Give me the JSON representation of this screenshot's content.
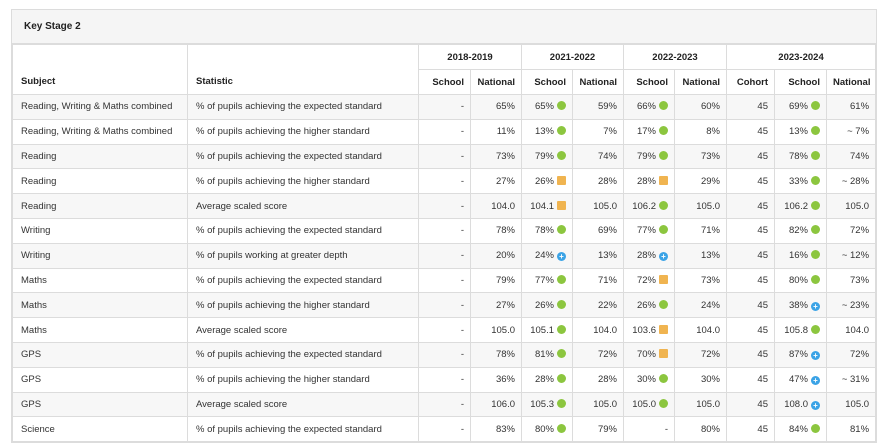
{
  "panel": {
    "title": "Key Stage 2"
  },
  "headers": {
    "subject": "Subject",
    "statistic": "Statistic",
    "years": [
      "2018-2019",
      "2021-2022",
      "2022-2023",
      "2023-2024"
    ],
    "school": "School",
    "national": "National",
    "cohort": "Cohort"
  },
  "indicator_colors": {
    "green": "#8cc63f",
    "amber": "#f0b450",
    "blue": "#3ba3e6"
  },
  "rows": [
    {
      "subject": "Reading, Writing & Maths combined",
      "statistic": "% of pupils achieving the expected standard",
      "y1819_school": "-",
      "y1819_national": "65%",
      "y2122_school": "65%",
      "y2122_ind": "green",
      "y2122_national": "59%",
      "y2223_school": "66%",
      "y2223_ind": "green",
      "y2223_national": "60%",
      "y2324_cohort": "45",
      "y2324_school": "69%",
      "y2324_ind": "green",
      "y2324_national": "61%"
    },
    {
      "subject": "Reading, Writing & Maths combined",
      "statistic": "% of pupils achieving the higher standard",
      "y1819_school": "-",
      "y1819_national": "11%",
      "y2122_school": "13%",
      "y2122_ind": "green",
      "y2122_national": "7%",
      "y2223_school": "17%",
      "y2223_ind": "green",
      "y2223_national": "8%",
      "y2324_cohort": "45",
      "y2324_school": "13%",
      "y2324_ind": "green",
      "y2324_national": "~ 7%"
    },
    {
      "subject": "Reading",
      "statistic": "% of pupils achieving the expected standard",
      "y1819_school": "-",
      "y1819_national": "73%",
      "y2122_school": "79%",
      "y2122_ind": "green",
      "y2122_national": "74%",
      "y2223_school": "79%",
      "y2223_ind": "green",
      "y2223_national": "73%",
      "y2324_cohort": "45",
      "y2324_school": "78%",
      "y2324_ind": "green",
      "y2324_national": "74%"
    },
    {
      "subject": "Reading",
      "statistic": "% of pupils achieving the higher standard",
      "y1819_school": "-",
      "y1819_national": "27%",
      "y2122_school": "26%",
      "y2122_ind": "amber",
      "y2122_national": "28%",
      "y2223_school": "28%",
      "y2223_ind": "amber",
      "y2223_national": "29%",
      "y2324_cohort": "45",
      "y2324_school": "33%",
      "y2324_ind": "green",
      "y2324_national": "~ 28%"
    },
    {
      "subject": "Reading",
      "statistic": "Average scaled score",
      "y1819_school": "-",
      "y1819_national": "104.0",
      "y2122_school": "104.1",
      "y2122_ind": "amber",
      "y2122_national": "105.0",
      "y2223_school": "106.2",
      "y2223_ind": "green",
      "y2223_national": "105.0",
      "y2324_cohort": "45",
      "y2324_school": "106.2",
      "y2324_ind": "green",
      "y2324_national": "105.0"
    },
    {
      "subject": "Writing",
      "statistic": "% of pupils achieving the expected standard",
      "y1819_school": "-",
      "y1819_national": "78%",
      "y2122_school": "78%",
      "y2122_ind": "green",
      "y2122_national": "69%",
      "y2223_school": "77%",
      "y2223_ind": "green",
      "y2223_national": "71%",
      "y2324_cohort": "45",
      "y2324_school": "82%",
      "y2324_ind": "green",
      "y2324_national": "72%"
    },
    {
      "subject": "Writing",
      "statistic": "% of pupils working at greater depth",
      "y1819_school": "-",
      "y1819_national": "20%",
      "y2122_school": "24%",
      "y2122_ind": "blue",
      "y2122_national": "13%",
      "y2223_school": "28%",
      "y2223_ind": "blue",
      "y2223_national": "13%",
      "y2324_cohort": "45",
      "y2324_school": "16%",
      "y2324_ind": "green",
      "y2324_national": "~ 12%"
    },
    {
      "subject": "Maths",
      "statistic": "% of pupils achieving the expected standard",
      "y1819_school": "-",
      "y1819_national": "79%",
      "y2122_school": "77%",
      "y2122_ind": "green",
      "y2122_national": "71%",
      "y2223_school": "72%",
      "y2223_ind": "amber",
      "y2223_national": "73%",
      "y2324_cohort": "45",
      "y2324_school": "80%",
      "y2324_ind": "green",
      "y2324_national": "73%"
    },
    {
      "subject": "Maths",
      "statistic": "% of pupils achieving the higher standard",
      "y1819_school": "-",
      "y1819_national": "27%",
      "y2122_school": "26%",
      "y2122_ind": "green",
      "y2122_national": "22%",
      "y2223_school": "26%",
      "y2223_ind": "green",
      "y2223_national": "24%",
      "y2324_cohort": "45",
      "y2324_school": "38%",
      "y2324_ind": "blue",
      "y2324_national": "~ 23%"
    },
    {
      "subject": "Maths",
      "statistic": "Average scaled score",
      "y1819_school": "-",
      "y1819_national": "105.0",
      "y2122_school": "105.1",
      "y2122_ind": "green",
      "y2122_national": "104.0",
      "y2223_school": "103.6",
      "y2223_ind": "amber",
      "y2223_national": "104.0",
      "y2324_cohort": "45",
      "y2324_school": "105.8",
      "y2324_ind": "green",
      "y2324_national": "104.0"
    },
    {
      "subject": "GPS",
      "statistic": "% of pupils achieving the expected standard",
      "y1819_school": "-",
      "y1819_national": "78%",
      "y2122_school": "81%",
      "y2122_ind": "green",
      "y2122_national": "72%",
      "y2223_school": "70%",
      "y2223_ind": "amber",
      "y2223_national": "72%",
      "y2324_cohort": "45",
      "y2324_school": "87%",
      "y2324_ind": "blue",
      "y2324_national": "72%"
    },
    {
      "subject": "GPS",
      "statistic": "% of pupils achieving the higher standard",
      "y1819_school": "-",
      "y1819_national": "36%",
      "y2122_school": "28%",
      "y2122_ind": "green",
      "y2122_national": "28%",
      "y2223_school": "30%",
      "y2223_ind": "green",
      "y2223_national": "30%",
      "y2324_cohort": "45",
      "y2324_school": "47%",
      "y2324_ind": "blue",
      "y2324_national": "~ 31%"
    },
    {
      "subject": "GPS",
      "statistic": "Average scaled score",
      "y1819_school": "-",
      "y1819_national": "106.0",
      "y2122_school": "105.3",
      "y2122_ind": "green",
      "y2122_national": "105.0",
      "y2223_school": "105.0",
      "y2223_ind": "green",
      "y2223_national": "105.0",
      "y2324_cohort": "45",
      "y2324_school": "108.0",
      "y2324_ind": "blue",
      "y2324_national": "105.0"
    },
    {
      "subject": "Science",
      "statistic": "% of pupils achieving the expected standard",
      "y1819_school": "-",
      "y1819_national": "83%",
      "y2122_school": "80%",
      "y2122_ind": "green",
      "y2122_national": "79%",
      "y2223_school": "-",
      "y2223_ind": "none",
      "y2223_national": "80%",
      "y2324_cohort": "45",
      "y2324_school": "84%",
      "y2324_ind": "green",
      "y2324_national": "81%"
    }
  ]
}
